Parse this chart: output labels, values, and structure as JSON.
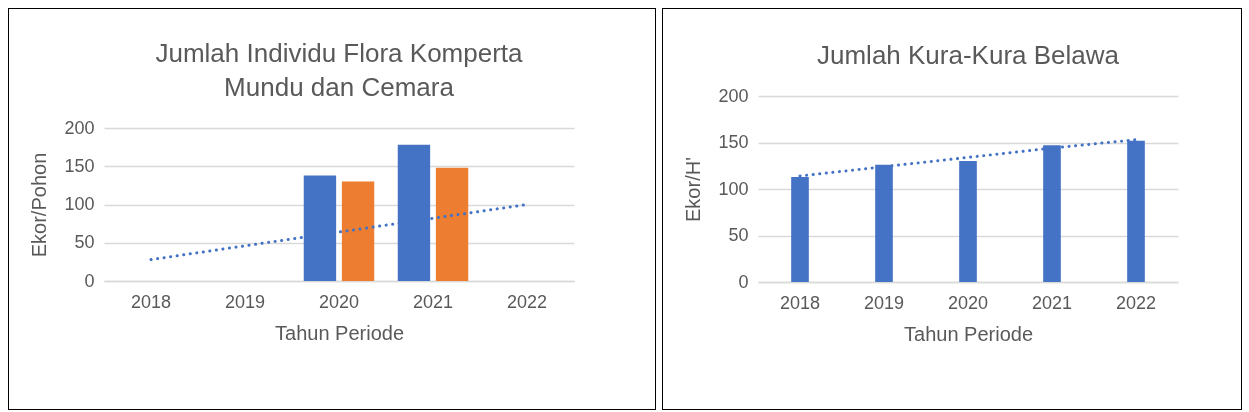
{
  "chart_data": [
    {
      "type": "bar",
      "title": "Jumlah Individu Flora Komperta\nMundu dan Cemara",
      "xlabel": "Tahun Periode",
      "ylabel": "Ekor/Pohon",
      "categories": [
        "2018",
        "2019",
        "2020",
        "2021",
        "2022"
      ],
      "series": [
        {
          "color": "#4472c4",
          "values": [
            null,
            null,
            138,
            178,
            null
          ]
        },
        {
          "color": "#ed7d31",
          "values": [
            null,
            null,
            130,
            148,
            null
          ]
        },
        {
          "type": "line",
          "color": "#4472c4",
          "line_style": "dotted",
          "values": [
            28,
            46,
            64,
            82,
            100
          ]
        }
      ],
      "ylim": [
        0,
        200
      ],
      "yticks": [
        0,
        50,
        100,
        150,
        200
      ],
      "grid": "y",
      "legend": false
    },
    {
      "type": "bar",
      "title": "Jumlah Kura-Kura Belawa",
      "xlabel": "Tahun Periode",
      "ylabel": "Ekor/H'",
      "categories": [
        "2018",
        "2019",
        "2020",
        "2021",
        "2022"
      ],
      "series": [
        {
          "color": "#4472c4",
          "values": [
            113,
            126,
            130,
            147,
            152
          ]
        },
        {
          "type": "line",
          "color": "#4472c4",
          "line_style": "dotted",
          "values": [
            114,
            124,
            134,
            144,
            153
          ]
        }
      ],
      "ylim": [
        0,
        200
      ],
      "yticks": [
        0,
        50,
        100,
        150,
        200
      ],
      "grid": "y",
      "legend": false
    }
  ]
}
